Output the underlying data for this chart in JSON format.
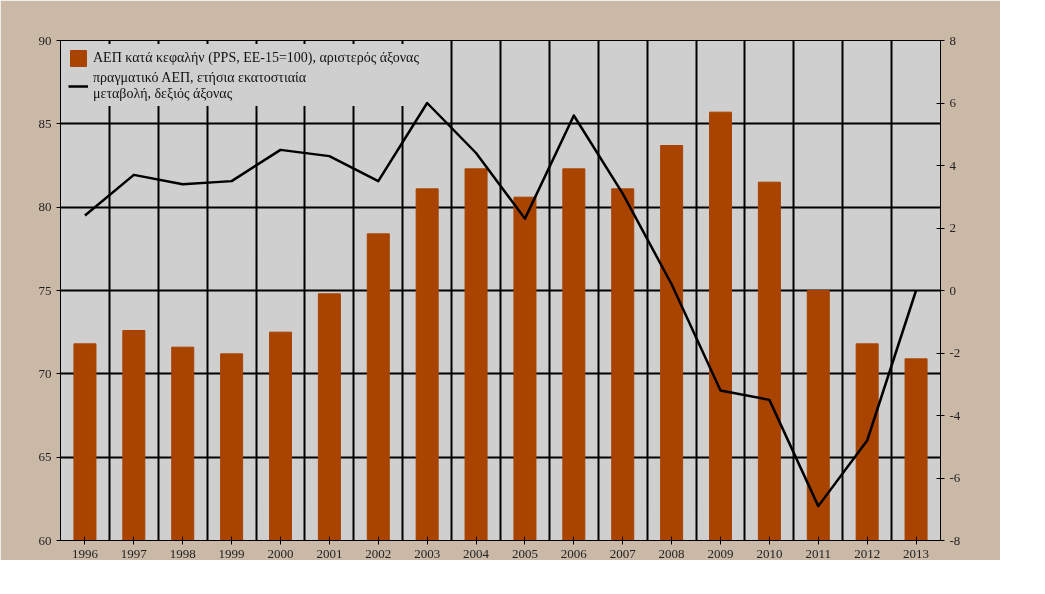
{
  "chart_data": {
    "type": "bar",
    "categories": [
      "1996",
      "1997",
      "1998",
      "1999",
      "2000",
      "2001",
      "2002",
      "2003",
      "2004",
      "2005",
      "2006",
      "2007",
      "2008",
      "2009",
      "2010",
      "2011",
      "2012",
      "2013"
    ],
    "series": [
      {
        "name": "ΑΕΠ κατά κεφαλήν (PPS, ΕΕ-15=100), αριστερός άξονας",
        "color": "#a84300",
        "values": [
          71.8,
          72.6,
          71.6,
          71.2,
          72.5,
          74.8,
          78.4,
          81.1,
          82.3,
          80.6,
          82.3,
          81.1,
          83.7,
          85.7,
          81.5,
          75.0,
          71.8,
          70.9
        ]
      },
      {
        "name": "πραγματικό ΑΕΠ, ετήσια εκατοστιαία\nμεταβολή, δεξιός άξονας",
        "type": "line",
        "axis": "y2",
        "color": "#000000",
        "values": [
          2.4,
          3.7,
          3.4,
          3.5,
          4.5,
          4.3,
          3.5,
          6.0,
          4.4,
          2.3,
          5.6,
          3.1,
          0.2,
          -3.2,
          -3.5,
          -6.9,
          -4.8,
          0.0
        ]
      }
    ],
    "ylim": [
      60,
      90
    ],
    "yticks": [
      60,
      65,
      70,
      75,
      80,
      85,
      90
    ],
    "y2lim": [
      -8,
      8
    ],
    "y2ticks": [
      -8,
      -6,
      -4,
      -2,
      0,
      2,
      4,
      6,
      8
    ],
    "grid": true,
    "legend": "top left",
    "marker": "none",
    "line_style": "solid"
  }
}
